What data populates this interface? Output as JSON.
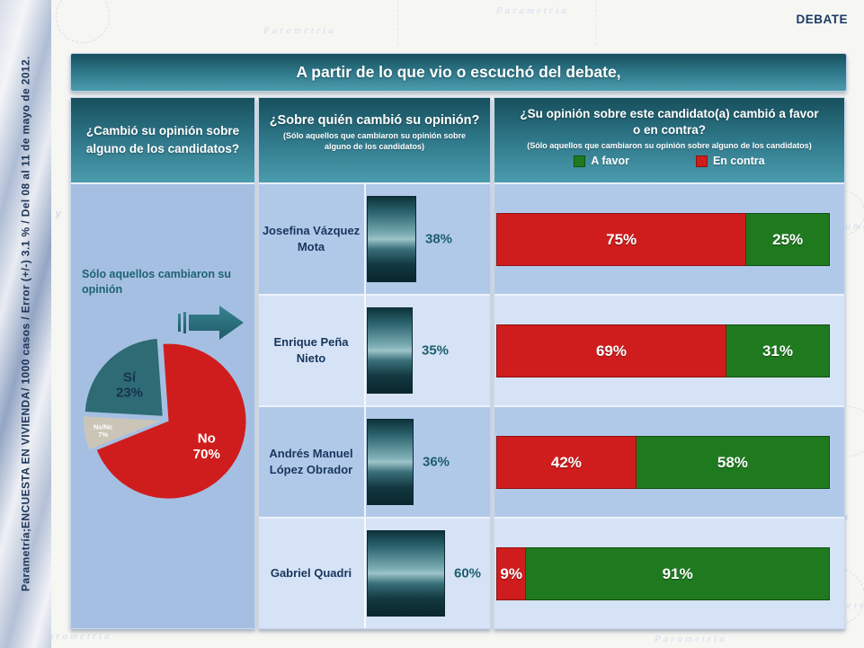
{
  "page": {
    "watermark": "Parametría",
    "debate_label": "DEBATE",
    "title": "A partir de lo que vio o escuchó del debate,",
    "sidebar": {
      "prefix": "Parametría; ",
      "bold": "ENCUESTA EN VIVIENDA",
      "suffix": " / 1000 casos / Error (+/-) 3.1 % / Del 08 al 11 de mayo de 2012."
    }
  },
  "panels": {
    "left": {
      "header": "¿Cambió su opinión sobre alguno de los candidatos?",
      "note": "Sólo aquellos cambiaron su opinión"
    },
    "middle": {
      "header": "¿Sobre quién cambió su opinión?",
      "subheader": "(Sólo aquellos que cambiaron su opinión sobre alguno de los candidatos)"
    },
    "right": {
      "header": "¿Su opinión sobre este candidato(a) cambió a favor o en contra?",
      "subheader": "(Sólo aquellos que cambiaron su opinión sobre alguno de los candidatos)",
      "legend": [
        {
          "label": "A favor",
          "color": "#1f7a1f"
        },
        {
          "label": "En contra",
          "color": "#cf1d1d"
        }
      ]
    }
  },
  "chart_data": [
    {
      "type": "pie",
      "title": "¿Cambió su opinión sobre alguno de los candidatos?",
      "start_angle_deg": -4,
      "slices": [
        {
          "label": "No",
          "pct": 70,
          "value_label": "70%",
          "color": "#cf1d1d",
          "text_color": "#ffffff",
          "font_size": 15,
          "label_r": 0.58,
          "explode": 3
        },
        {
          "label": "Ns/Nc",
          "pct": 7,
          "value_label": "7%",
          "color": "#cbc5b8",
          "text_color": "#ffffff",
          "font_size": 7.5,
          "label_r": 0.76,
          "explode": 6
        },
        {
          "label": "Sí",
          "pct": 23,
          "value_label": "23%",
          "color": "#2e6b74",
          "text_color": "#16324f",
          "font_size": 15,
          "label_r": 0.6,
          "explode": 6
        }
      ]
    },
    {
      "type": "bar",
      "title": "¿Sobre quién cambió su opinión?",
      "unit": "%",
      "categories": [
        "Josefina Vázquez Mota",
        "Enrique Peña Nieto",
        "Andrés Manuel López Obrador",
        "Gabriel Quadri"
      ],
      "values": [
        38,
        35,
        36,
        60
      ],
      "value_labels": [
        "38%",
        "35%",
        "36%",
        "60%"
      ],
      "bar_color": "teal-gradient",
      "xlim": [
        0,
        100
      ]
    },
    {
      "type": "bar",
      "stacked": true,
      "title": "¿Su opinión sobre este candidato(a) cambió a favor o en contra?",
      "categories": [
        "Josefina Vázquez Mota",
        "Enrique Peña Nieto",
        "Andrés Manuel López Obrador",
        "Gabriel Quadri"
      ],
      "series": [
        {
          "name": "En contra",
          "color": "#cf1d1d",
          "values": [
            75,
            69,
            42,
            9
          ],
          "value_labels": [
            "75%",
            "69%",
            "42%",
            "9%"
          ]
        },
        {
          "name": "A favor",
          "color": "#1f7a1f",
          "values": [
            25,
            31,
            58,
            91
          ],
          "value_labels": [
            "25%",
            "31%",
            "58%",
            "91%"
          ]
        }
      ],
      "xlim": [
        0,
        100
      ]
    }
  ]
}
